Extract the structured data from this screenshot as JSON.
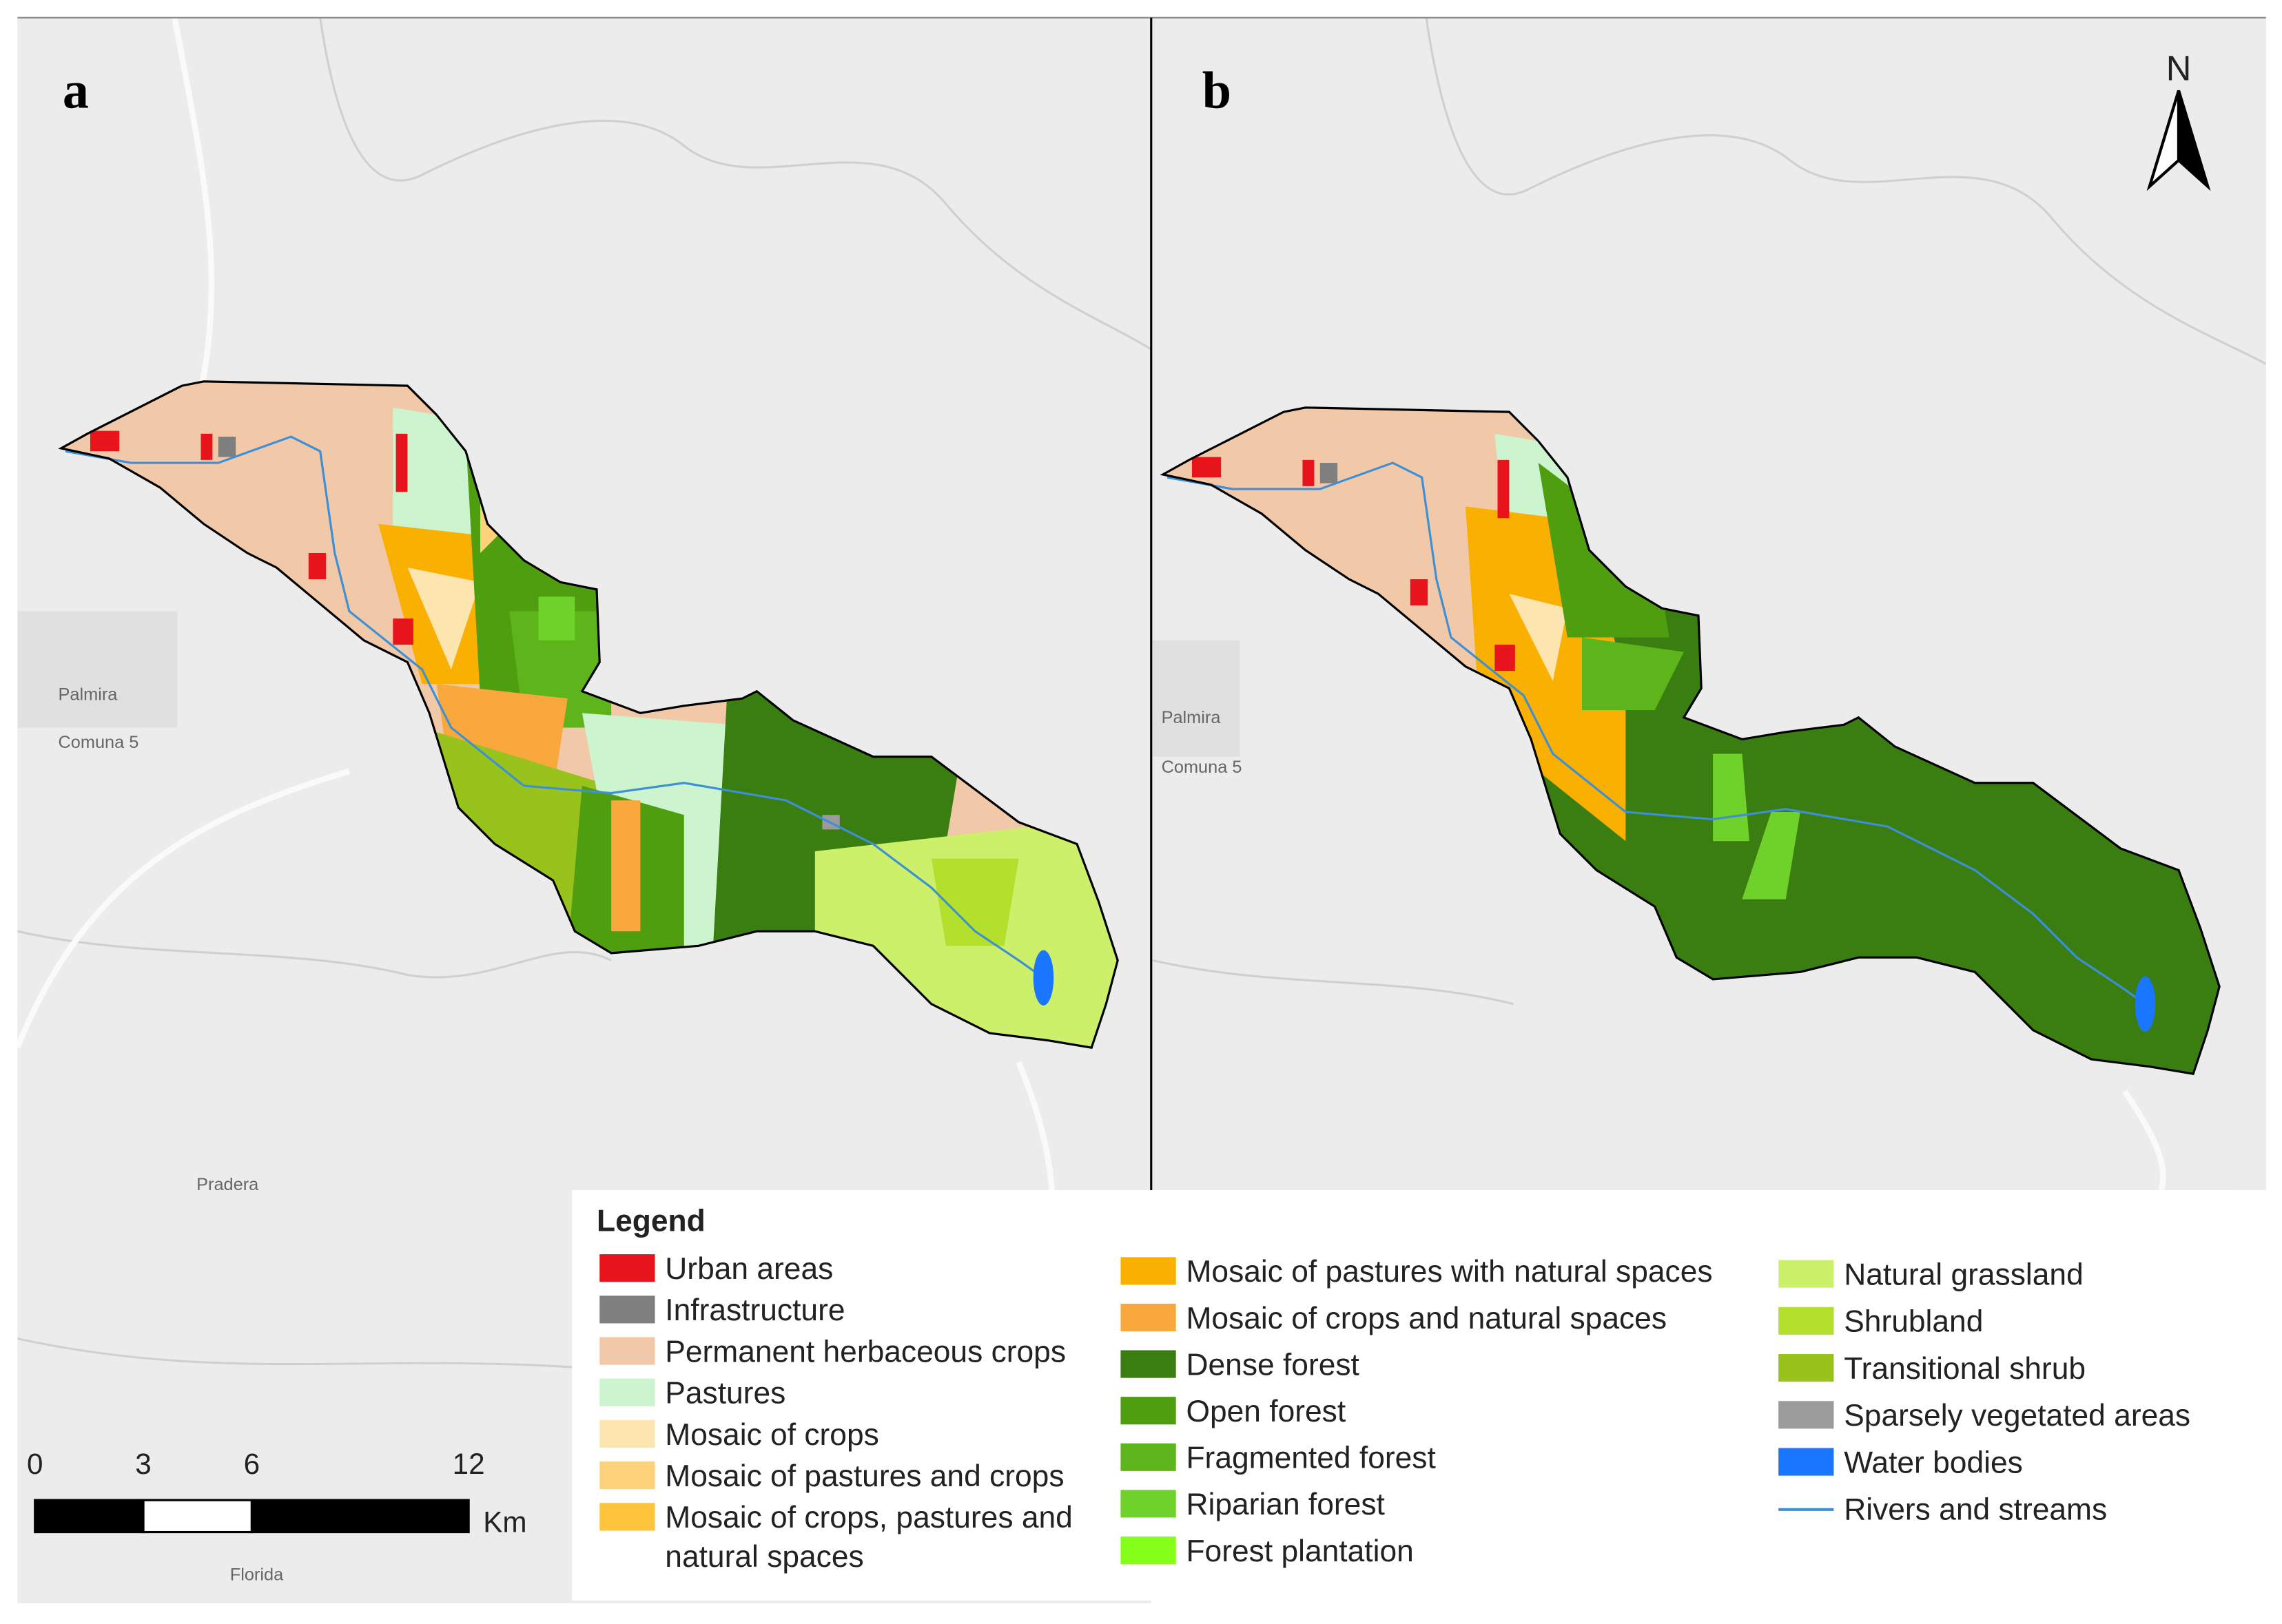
{
  "panels": [
    {
      "label": "a",
      "places": [
        "Palmira",
        "Comuna 5",
        "Pradera",
        "Florida"
      ]
    },
    {
      "label": "b",
      "places": [
        "Palmira",
        "Comuna 5"
      ]
    }
  ],
  "north": "N",
  "scale_bar": {
    "ticks": [
      0,
      3,
      6,
      12
    ],
    "unit": "Km"
  },
  "legend": {
    "title": "Legend",
    "columns": [
      [
        {
          "label": [
            "Urban areas"
          ],
          "color": "#e8141b"
        },
        {
          "label": [
            "Infrastructure"
          ],
          "color": "#7f7f7f"
        },
        {
          "label": [
            "Permanent herbaceous crops"
          ],
          "color": "#f2c9a8"
        },
        {
          "label": [
            "Pastures"
          ],
          "color": "#ccf5cf"
        },
        {
          "label": [
            "Mosaic of crops"
          ],
          "color": "#fde5b0"
        },
        {
          "label": [
            "Mosaic of pastures and crops"
          ],
          "color": "#fdd27a"
        },
        {
          "label": [
            "Mosaic of crops, pastures and",
            "natural spaces"
          ],
          "color": "#fdc43c"
        }
      ],
      [
        {
          "label": [
            "Mosaic of pastures with natural spaces"
          ],
          "color": "#f9b000"
        },
        {
          "label": [
            "Mosaic of crops and natural spaces"
          ],
          "color": "#f9a83e"
        },
        {
          "label": [
            "Dense forest"
          ],
          "color": "#3a7d10"
        },
        {
          "label": [
            "Open forest"
          ],
          "color": "#4f9e10"
        },
        {
          "label": [
            "Fragmented forest"
          ],
          "color": "#5db51b"
        },
        {
          "label": [
            "Riparian forest"
          ],
          "color": "#6ed22b"
        },
        {
          "label": [
            "Forest plantation"
          ],
          "color": "#84ff1a"
        }
      ],
      [
        {
          "label": [
            "Natural grassland"
          ],
          "color": "#cdf06a"
        },
        {
          "label": [
            "Shrubland"
          ],
          "color": "#b3e02c"
        },
        {
          "label": [
            "Transitional shrub"
          ],
          "color": "#98c21c"
        },
        {
          "label": [
            "Sparsely vegetated areas"
          ],
          "color": "#9b9b9b"
        },
        {
          "label": [
            "Water bodies"
          ],
          "color": "#1a75ff"
        },
        {
          "label": [
            "Rivers and streams"
          ],
          "color": "#3d8fd6",
          "symbol": "line"
        }
      ]
    ]
  }
}
